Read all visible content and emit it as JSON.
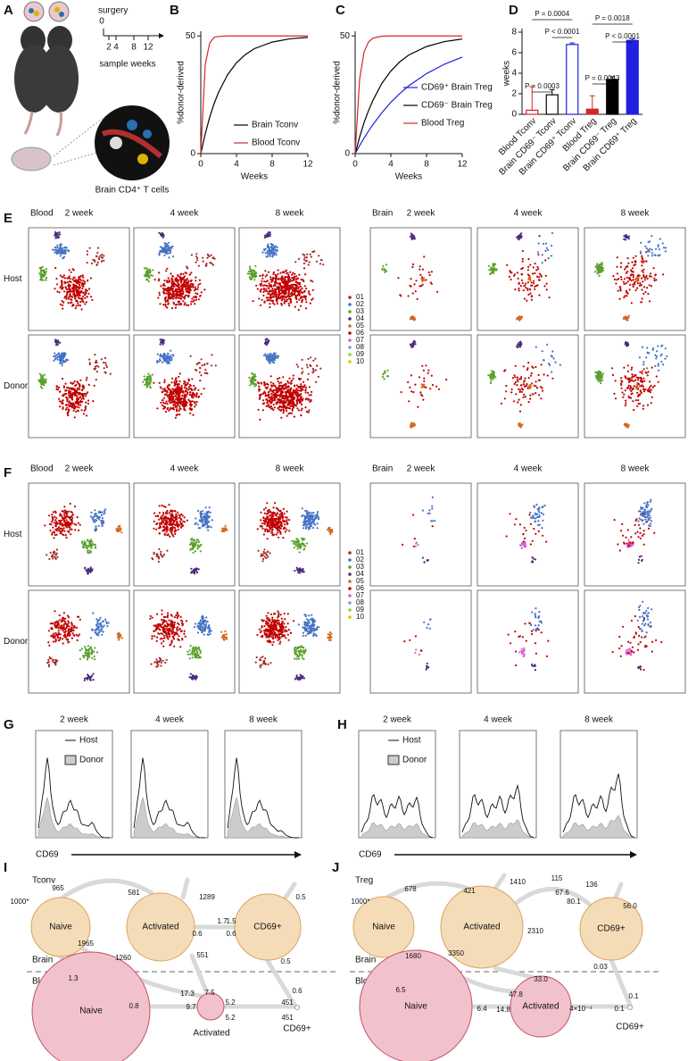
{
  "figure": {
    "panel_labels": [
      "A",
      "B",
      "C",
      "D",
      "E",
      "F",
      "G",
      "H",
      "I",
      "J"
    ],
    "A": {
      "timeline_title": "surgery",
      "timeline_ticks": [
        "0",
        "2",
        "4",
        "8",
        "12"
      ],
      "timeline_label": "sample weeks",
      "caption": "Brain CD4⁺ T cells"
    },
    "E": {
      "groups": [
        "Blood",
        "Brain"
      ],
      "weeks": [
        "2 week",
        "4 week",
        "8 week"
      ],
      "rows": [
        "Host",
        "Donor"
      ],
      "legend": {
        "labels": [
          "01",
          "02",
          "03",
          "04",
          "05",
          "06",
          "07",
          "08",
          "09",
          "10"
        ],
        "colors": [
          "#a52a2a",
          "#4472c4",
          "#5aa02c",
          "#4b2a7b",
          "#d2691e",
          "#c00000",
          "#d65fcf",
          "#7f9fcf",
          "#9acd32",
          "#e6c200"
        ]
      }
    },
    "F": {
      "groups": [
        "Blood",
        "Brain"
      ],
      "weeks": [
        "2 week",
        "4 week",
        "8 week"
      ],
      "rows": [
        "Host",
        "Donor"
      ],
      "legend": {
        "labels": [
          "01",
          "02",
          "03",
          "04",
          "05",
          "06",
          "07",
          "08",
          "09",
          "10"
        ],
        "colors": [
          "#a52a2a",
          "#4472c4",
          "#5aa02c",
          "#4b2a7b",
          "#d2691e",
          "#c00000",
          "#d65fcf",
          "#7f9fcf",
          "#9acd32",
          "#e6c200"
        ]
      }
    },
    "G": {
      "weeks": [
        "2 week",
        "4 week",
        "8 week"
      ],
      "legend": [
        "Host",
        "Donor"
      ],
      "axis_label": "CD69"
    },
    "H": {
      "weeks": [
        "2 week",
        "4 week",
        "8 week"
      ],
      "legend": [
        "Host",
        "Donor"
      ],
      "axis_label": "CD69"
    },
    "I": {
      "title": "Tconv",
      "compartments": [
        "Brain",
        "Blood"
      ],
      "nodes": [
        "Naive",
        "Activated",
        "CD69+",
        "Naive",
        "Activated",
        "CD69+"
      ],
      "rates": [
        "1000*",
        "965",
        "581",
        "1289",
        "0.5",
        "1965",
        "1.7",
        "1.5",
        "0.6",
        "0.6",
        "551",
        "1260",
        "1.3",
        "0.5",
        "0.8",
        "17.3",
        "7.5",
        "9.7",
        "5.2",
        "5.2",
        "0.6",
        "451",
        "451"
      ]
    },
    "J": {
      "title": "Treg",
      "compartments": [
        "Brain",
        "Blood"
      ],
      "nodes": [
        "Naive",
        "Activated",
        "CD69+",
        "Naive",
        "Activated",
        "CD69+"
      ],
      "rates": [
        "1000*",
        "678",
        "421",
        "1410",
        "115",
        "136",
        "67.6",
        "80.1",
        "56.0",
        "2310",
        "3350",
        "1680",
        "0.03",
        "6.5",
        "33.0",
        "47.8",
        "6.4",
        "14.8",
        "4×10⁻⁴",
        "0.1",
        "0.1"
      ]
    }
  },
  "chart_data": [
    {
      "type": "line",
      "ylabel": "%donor-derived",
      "xlabel": "Weeks",
      "x": [
        0,
        0.5,
        1,
        1.5,
        2,
        3,
        4,
        5,
        6,
        8,
        10,
        12
      ],
      "series": [
        {
          "name": "Brain Tconv",
          "color": "#000000",
          "values": [
            0,
            8.4,
            15.5,
            21.3,
            26.1,
            33.5,
            38.6,
            42.1,
            44.6,
            47.4,
            48.8,
            49.4
          ]
        },
        {
          "name": "Blood Tconv",
          "color": "#d62728",
          "values": [
            0,
            38,
            47,
            49.4,
            49.8,
            50,
            50,
            50,
            50,
            50,
            50,
            50
          ]
        }
      ],
      "xlim": [
        0,
        12
      ],
      "xticks": [
        0,
        4,
        8,
        12
      ],
      "ylim": [
        0,
        52
      ],
      "yticks": [
        0,
        50
      ]
    },
    {
      "type": "line",
      "ylabel": "%donor-derived",
      "xlabel": "Weeks",
      "x": [
        0,
        0.5,
        1,
        1.5,
        2,
        3,
        4,
        5,
        6,
        8,
        10,
        12
      ],
      "series": [
        {
          "name": "CD69⁺ Brain Treg",
          "color": "#2020e0",
          "values": [
            0,
            3.4,
            6.6,
            9.6,
            12.4,
            17.4,
            21.8,
            25.5,
            28.8,
            34.0,
            38.0,
            41.0
          ]
        },
        {
          "name": "CD69⁻ Brain Treg",
          "color": "#000000",
          "values": [
            0,
            7.0,
            13.2,
            18.3,
            22.7,
            29.9,
            35.1,
            39.0,
            41.9,
            45.5,
            47.6,
            48.7
          ]
        },
        {
          "name": "Blood Treg",
          "color": "#d62728",
          "values": [
            0,
            31.6,
            43.2,
            47.5,
            49.1,
            49.9,
            50,
            50,
            50,
            50,
            50,
            50
          ]
        }
      ],
      "xlim": [
        0,
        12
      ],
      "xticks": [
        0,
        4,
        8,
        12
      ],
      "ylim": [
        0,
        52
      ],
      "yticks": [
        0,
        50
      ]
    },
    {
      "type": "bar",
      "ylabel": "weeks",
      "categories": [
        "Blood Tconv",
        "Brain CD69⁻ Tconv",
        "Brain CD69⁺ Tconv",
        "Blood Treg",
        "Brain CD69⁻ Treg",
        "Brain CD69⁺ Treg"
      ],
      "values": [
        0.4,
        1.9,
        6.8,
        0.5,
        3.4,
        7.2
      ],
      "errors": [
        2.3,
        0.5,
        0.15,
        1.3,
        0.25,
        0.15
      ],
      "colors": [
        "#d62728",
        "#000000",
        "#2020e0",
        "#d62728",
        "#000000",
        "#2020e0"
      ],
      "filled": [
        false,
        false,
        false,
        true,
        true,
        true
      ],
      "ylim": [
        0,
        8
      ],
      "yticks": [
        0,
        2,
        4,
        6,
        8
      ],
      "annotations": [
        "P = 0.0004",
        "P < 0.0001",
        "P = 0.0003",
        "P = 0.0018",
        "P < 0.0001",
        "P = 0.0043"
      ]
    }
  ]
}
